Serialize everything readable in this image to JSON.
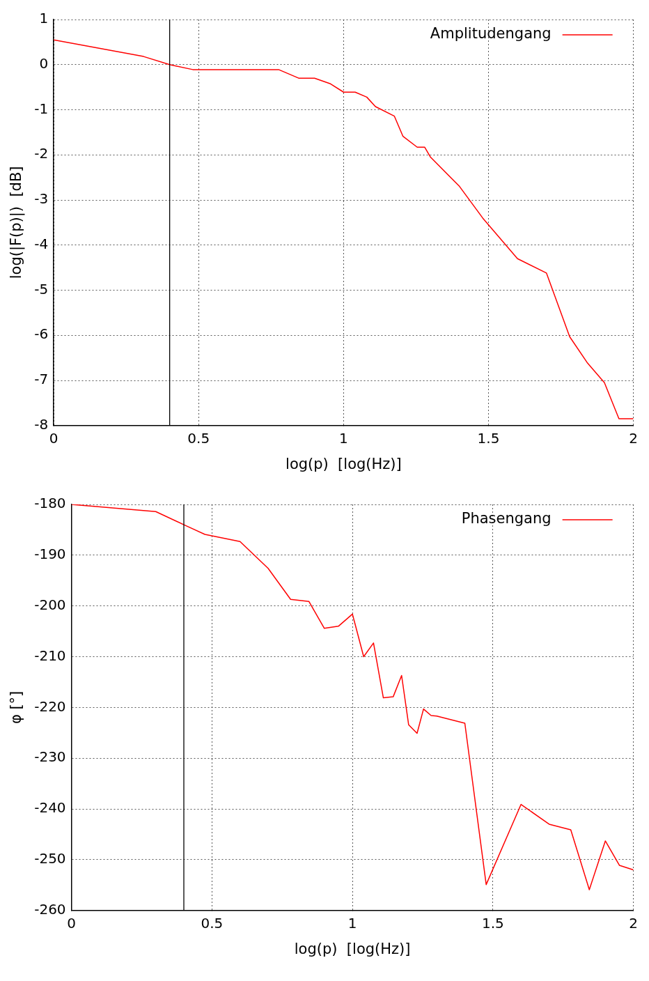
{
  "chart_data": [
    {
      "type": "line",
      "xlabel": "log(p)  [log(Hz)]",
      "ylabel": "log(|F(p)|)  [dB]",
      "xlim": [
        0,
        2
      ],
      "xticks": [
        0,
        0.5,
        1,
        1.5,
        2
      ],
      "ylim": [
        -8,
        1
      ],
      "yticks": [
        1,
        0,
        -1,
        -2,
        -3,
        -4,
        -5,
        -6,
        -7,
        -8
      ],
      "grid": true,
      "legend": "top right",
      "marker": "none",
      "line_style": "solid",
      "ref_lines": [
        {
          "axis": "x",
          "value": 0.4,
          "color": "#000000"
        }
      ],
      "series": [
        {
          "name": "Amplitudengang",
          "color": "#ff0000",
          "x": [
            0,
            0.31,
            0.4,
            0.48,
            0.776,
            0.845,
            0.9,
            0.953,
            1.0,
            1.04,
            1.08,
            1.11,
            1.175,
            1.205,
            1.254,
            1.28,
            1.3,
            1.4,
            1.48,
            1.6,
            1.7,
            1.78,
            1.84,
            1.9,
            1.95,
            2.0
          ],
          "values": [
            0.55,
            0.18,
            0.0,
            -0.11,
            -0.11,
            -0.3,
            -0.3,
            -0.42,
            -0.61,
            -0.61,
            -0.72,
            -0.93,
            -1.14,
            -1.59,
            -1.83,
            -1.83,
            -2.05,
            -2.7,
            -3.4,
            -4.3,
            -4.62,
            -6.03,
            -6.6,
            -7.05,
            -7.85,
            -7.85
          ]
        }
      ]
    },
    {
      "type": "line",
      "xlabel": "log(p)  [log(Hz)]",
      "ylabel": "φ [°]",
      "xlim": [
        0,
        2
      ],
      "xticks": [
        0,
        0.5,
        1,
        1.5,
        2
      ],
      "ylim": [
        -260,
        -180
      ],
      "yticks": [
        -180,
        -190,
        -200,
        -210,
        -220,
        -230,
        -240,
        -250,
        -260
      ],
      "grid": true,
      "legend": "top right",
      "marker": "none",
      "line_style": "solid",
      "ref_lines": [
        {
          "axis": "x",
          "value": 0.4,
          "color": "#000000"
        }
      ],
      "series": [
        {
          "name": "Phasengang",
          "color": "#ff0000",
          "x": [
            0,
            0.3,
            0.4,
            0.475,
            0.6,
            0.7,
            0.78,
            0.845,
            0.9,
            0.95,
            1.0,
            1.04,
            1.075,
            1.11,
            1.145,
            1.175,
            1.2,
            1.23,
            1.253,
            1.28,
            1.3,
            1.4,
            1.476,
            1.6,
            1.7,
            1.777,
            1.843,
            1.9,
            1.95,
            2.0
          ],
          "values": [
            -180,
            -181.4,
            -184,
            -185.9,
            -187.3,
            -192.6,
            -198.7,
            -199.1,
            -204.4,
            -204,
            -201.6,
            -210,
            -207.3,
            -218.1,
            -217.9,
            -213.7,
            -223.4,
            -225.1,
            -220.3,
            -221.6,
            -221.7,
            -223.1,
            -254.9,
            -239.1,
            -243,
            -244.1,
            -255.9,
            -246.3,
            -251.1,
            -252
          ]
        }
      ]
    }
  ]
}
